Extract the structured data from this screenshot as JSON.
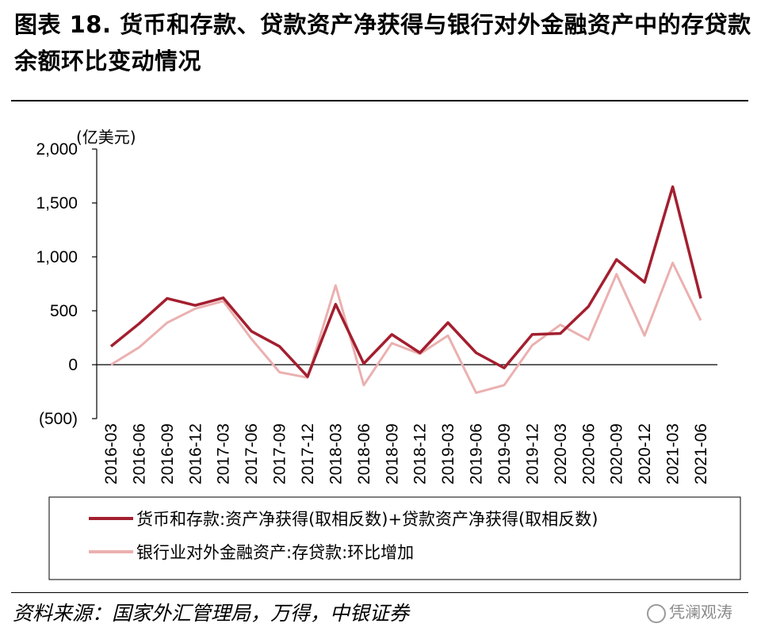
{
  "title": "图表 18. 货币和存款、贷款资产净获得与银行对外金融资产中的存贷款余额环比变动情况",
  "source": "资料来源：国家外汇管理局，万得，中银证券",
  "watermark": "凭澜观涛",
  "colors": {
    "series1": "#a31f2f",
    "series2": "#ebb0b0",
    "negative_tick": "#d9261c"
  },
  "chart_data": {
    "type": "line",
    "unit": "(亿美元)",
    "x": [
      "2016-03",
      "2016-06",
      "2016-09",
      "2016-12",
      "2017-03",
      "2017-06",
      "2017-09",
      "2017-12",
      "2018-03",
      "2018-06",
      "2018-09",
      "2018-12",
      "2019-03",
      "2019-06",
      "2019-09",
      "2019-12",
      "2020-03",
      "2020-06",
      "2020-09",
      "2020-12",
      "2021-03",
      "2021-06"
    ],
    "ylim": [
      -500,
      2000
    ],
    "yticks": [
      -500,
      0,
      500,
      1000,
      1500,
      2000
    ],
    "ytick_labels": [
      "(500)",
      "0",
      "500",
      "1,000",
      "1,500",
      "2,000"
    ],
    "series": [
      {
        "name": "货币和存款:资产净获得(取相反数)+贷款资产净获得(取相反数)",
        "values": [
          170,
          380,
          615,
          550,
          620,
          310,
          170,
          -110,
          560,
          10,
          280,
          110,
          390,
          110,
          -30,
          280,
          290,
          540,
          975,
          765,
          1650,
          615
        ]
      },
      {
        "name": "银行业对外金融资产:存贷款:环比增加",
        "values": [
          0,
          160,
          390,
          520,
          590,
          240,
          -70,
          -120,
          735,
          -190,
          200,
          100,
          270,
          -260,
          -190,
          180,
          370,
          230,
          840,
          270,
          945,
          410
        ]
      }
    ],
    "legend_position": "bottom",
    "grid": false
  }
}
